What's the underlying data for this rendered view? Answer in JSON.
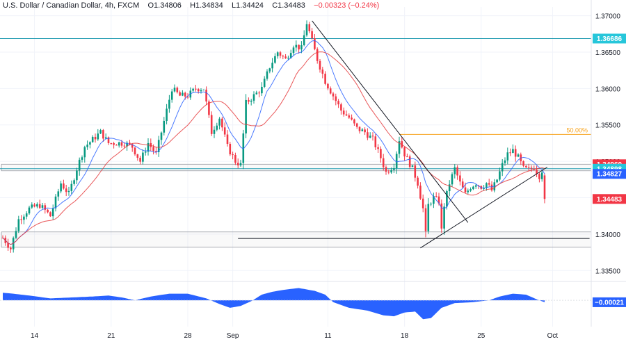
{
  "legend": {
    "symbol": "U.S. Dollar / Canadian Dollar, 4h, FXCM",
    "open": "O1.34806",
    "high": "H1.34834",
    "low": "L1.34424",
    "close": "C1.34483",
    "change": "−0.00323 (−0.24%)"
  },
  "colors": {
    "up": "#089981",
    "down": "#f23645",
    "ma_fast": "#2962ff",
    "ma_slow": "#e5393c",
    "osc": "#2962ff",
    "trendline": "#131722",
    "fib": "#f7a21b",
    "hline": "#1e9ab0",
    "zone_border": "#9598a1"
  },
  "chart_data": [
    {
      "type": "candlestick",
      "title": "U.S. Dollar / Canadian Dollar, 4h, FXCM",
      "ylim": [
        1.3335,
        1.3712
      ],
      "y_ticks": [
        "1.37000",
        "1.36500",
        "1.36000",
        "1.35500",
        "1.35000",
        "1.34500",
        "1.34000",
        "1.33500"
      ],
      "x_ticks": [
        "14",
        "21",
        "28",
        "Sep",
        "11",
        "18",
        "25",
        "Oct"
      ],
      "x_tick_positions_bar": [
        12,
        41,
        70,
        87,
        123,
        152,
        181,
        208
      ],
      "bar_count": 206,
      "ohlc_anchors": [
        [
          0,
          1.3395
        ],
        [
          3,
          1.338
        ],
        [
          6,
          1.342
        ],
        [
          10,
          1.3435
        ],
        [
          14,
          1.344
        ],
        [
          18,
          1.3425
        ],
        [
          22,
          1.347
        ],
        [
          25,
          1.3455
        ],
        [
          28,
          1.349
        ],
        [
          31,
          1.352
        ],
        [
          34,
          1.353
        ],
        [
          37,
          1.354
        ],
        [
          40,
          1.3525
        ],
        [
          43,
          1.3525
        ],
        [
          46,
          1.3525
        ],
        [
          49,
          1.352
        ],
        [
          52,
          1.35
        ],
        [
          55,
          1.3525
        ],
        [
          58,
          1.351
        ],
        [
          61,
          1.3555
        ],
        [
          64,
          1.36
        ],
        [
          67,
          1.359
        ],
        [
          70,
          1.359
        ],
        [
          73,
          1.36
        ],
        [
          76,
          1.36
        ],
        [
          79,
          1.354
        ],
        [
          82,
          1.356
        ],
        [
          85,
          1.352
        ],
        [
          88,
          1.35
        ],
        [
          90,
          1.3495
        ],
        [
          92,
          1.358
        ],
        [
          95,
          1.359
        ],
        [
          98,
          1.36
        ],
        [
          101,
          1.363
        ],
        [
          104,
          1.365
        ],
        [
          107,
          1.364
        ],
        [
          110,
          1.366
        ],
        [
          113,
          1.3655
        ],
        [
          115,
          1.369
        ],
        [
          117,
          1.3665
        ],
        [
          119,
          1.364
        ],
        [
          122,
          1.361
        ],
        [
          125,
          1.359
        ],
        [
          128,
          1.357
        ],
        [
          131,
          1.356
        ],
        [
          134,
          1.3545
        ],
        [
          137,
          1.354
        ],
        [
          140,
          1.353
        ],
        [
          143,
          1.3505
        ],
        [
          145,
          1.3485
        ],
        [
          148,
          1.3495
        ],
        [
          150,
          1.353
        ],
        [
          152,
          1.351
        ],
        [
          155,
          1.349
        ],
        [
          157,
          1.347
        ],
        [
          159,
          1.3435
        ],
        [
          160,
          1.34
        ],
        [
          161,
          1.344
        ],
        [
          163,
          1.345
        ],
        [
          165,
          1.3445
        ],
        [
          166,
          1.3405
        ],
        [
          167,
          1.344
        ],
        [
          169,
          1.347
        ],
        [
          171,
          1.349
        ],
        [
          173,
          1.347
        ],
        [
          175,
          1.3455
        ],
        [
          177,
          1.3465
        ],
        [
          179,
          1.347
        ],
        [
          181,
          1.3465
        ],
        [
          183,
          1.347
        ],
        [
          185,
          1.346
        ],
        [
          187,
          1.3475
        ],
        [
          189,
          1.3495
        ],
        [
          191,
          1.351
        ],
        [
          193,
          1.3515
        ],
        [
          195,
          1.3505
        ],
        [
          197,
          1.349
        ],
        [
          199,
          1.3488
        ],
        [
          201,
          1.3492
        ],
        [
          203,
          1.348
        ],
        [
          204,
          1.3488
        ],
        [
          205,
          1.3448
        ]
      ],
      "last_candle": {
        "open": 1.34806,
        "high": 1.34834,
        "low": 1.34424,
        "close": 1.34483
      },
      "moving_averages": [
        {
          "kind": "fast",
          "period": 9
        },
        {
          "kind": "slow",
          "period": 21
        }
      ],
      "levels": [
        {
          "value": 1.36686,
          "label": "1.36686",
          "badge": "#26c6da",
          "line": "horizontal"
        },
        {
          "value": 1.3496,
          "label": "1.34960",
          "badge": "#f23645"
        },
        {
          "value": 1.34898,
          "label": "1.34898",
          "badge": "#26c6da",
          "line": "horizontal"
        },
        {
          "value": 1.34827,
          "label": "1.34827",
          "badge": "#2962ff"
        },
        {
          "value": 1.34483,
          "label": "1.34483",
          "badge": "#f23645"
        }
      ],
      "zones": [
        {
          "from": 1.3487,
          "to": 1.3496
        },
        {
          "from": 1.3382,
          "to": 1.3403
        }
      ],
      "fib_level": {
        "value": 1.3537,
        "label": "50.00%",
        "from_bar": 150,
        "to_bar": 204
      },
      "trendlines": [
        {
          "from": [
            117,
            1.3693
          ],
          "to": [
            176,
            1.3416
          ]
        },
        {
          "from": [
            158,
            1.3381
          ],
          "to": [
            206,
            1.3492
          ]
        },
        {
          "from": [
            89,
            1.3394
          ],
          "to": [
            222,
            1.3394
          ]
        }
      ]
    },
    {
      "type": "area",
      "title": "",
      "ylim": [
        -0.0028,
        0.002
      ],
      "last_value": "−0.00021",
      "anchors": [
        [
          0,
          0.0008
        ],
        [
          4,
          0.0007
        ],
        [
          10,
          0.0005
        ],
        [
          18,
          0.0002
        ],
        [
          26,
          0.0003
        ],
        [
          34,
          0.0004
        ],
        [
          40,
          0.0005
        ],
        [
          45,
          0.0003
        ],
        [
          50,
          0.0
        ],
        [
          56,
          0.0004
        ],
        [
          63,
          0.0007
        ],
        [
          70,
          0.0007
        ],
        [
          77,
          0.0002
        ],
        [
          82,
          -0.0004
        ],
        [
          86,
          -0.0008
        ],
        [
          90,
          -0.0006
        ],
        [
          94,
          -0.0001
        ],
        [
          98,
          0.0006
        ],
        [
          102,
          0.0009
        ],
        [
          106,
          0.0011
        ],
        [
          112,
          0.0013
        ],
        [
          118,
          0.001
        ],
        [
          122,
          0.0006
        ],
        [
          125,
          -0.0002
        ],
        [
          131,
          -0.0008
        ],
        [
          138,
          -0.0011
        ],
        [
          144,
          -0.0016
        ],
        [
          148,
          -0.0017
        ],
        [
          152,
          -0.0013
        ],
        [
          156,
          -0.0012
        ],
        [
          159,
          -0.002
        ],
        [
          162,
          -0.0019
        ],
        [
          166,
          -0.0008
        ],
        [
          171,
          -0.0003
        ],
        [
          178,
          -0.0002
        ],
        [
          184,
          0.0
        ],
        [
          188,
          0.0004
        ],
        [
          193,
          0.0007
        ],
        [
          198,
          0.0006
        ],
        [
          202,
          0.0001
        ],
        [
          205,
          -0.00021
        ]
      ]
    }
  ]
}
